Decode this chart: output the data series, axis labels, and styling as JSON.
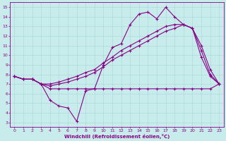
{
  "xlabel": "Windchill (Refroidissement éolien,°C)",
  "ylabel": "",
  "xlim": [
    -0.5,
    23.5
  ],
  "ylim": [
    2.5,
    15.5
  ],
  "xticks": [
    0,
    1,
    2,
    3,
    4,
    5,
    6,
    7,
    8,
    9,
    10,
    11,
    12,
    13,
    14,
    15,
    16,
    17,
    18,
    19,
    20,
    21,
    22,
    23
  ],
  "yticks": [
    3,
    4,
    5,
    6,
    7,
    8,
    9,
    10,
    11,
    12,
    13,
    14,
    15
  ],
  "bg_color": "#c8ecec",
  "line_color": "#880088",
  "line1_y": [
    7.8,
    7.5,
    7.5,
    7.0,
    5.3,
    4.7,
    4.5,
    3.1,
    6.3,
    6.5,
    9.0,
    10.8,
    11.2,
    13.2,
    14.3,
    14.5,
    13.8,
    15.0,
    14.0,
    13.2,
    12.8,
    9.8,
    7.8,
    7.0
  ],
  "line2_y": [
    7.8,
    7.5,
    7.5,
    7.0,
    6.5,
    6.5,
    6.5,
    6.5,
    6.5,
    6.5,
    6.5,
    6.5,
    6.5,
    6.5,
    6.5,
    6.5,
    6.5,
    6.5,
    6.5,
    6.5,
    6.5,
    6.5,
    6.5,
    7.0
  ],
  "line3_y": [
    7.8,
    7.5,
    7.5,
    7.0,
    6.8,
    7.0,
    7.2,
    7.5,
    7.8,
    8.2,
    8.8,
    9.5,
    10.0,
    10.5,
    11.0,
    11.5,
    12.0,
    12.5,
    12.8,
    13.2,
    12.8,
    11.0,
    8.5,
    7.0
  ],
  "line4_y": [
    7.8,
    7.5,
    7.5,
    7.0,
    7.0,
    7.2,
    7.5,
    7.8,
    8.2,
    8.5,
    9.2,
    9.8,
    10.5,
    11.0,
    11.5,
    12.0,
    12.5,
    13.0,
    13.2,
    13.2,
    12.8,
    10.5,
    8.0,
    7.0
  ]
}
